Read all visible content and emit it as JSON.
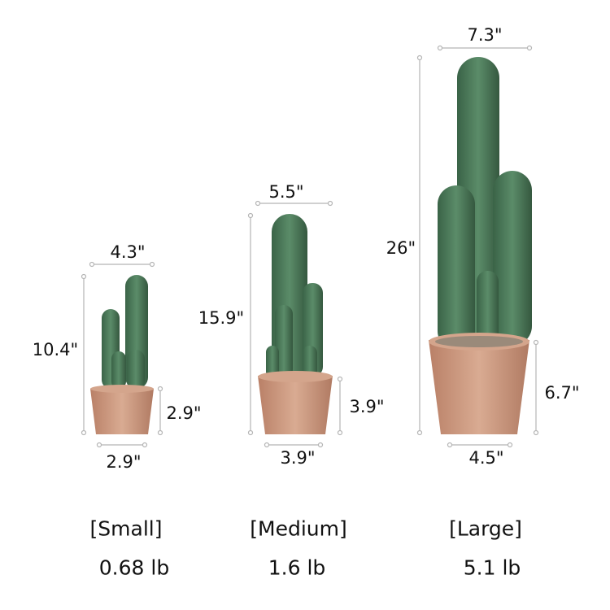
{
  "colors": {
    "cactus": "#4d7d5c",
    "cactus_dark": "#3a6347",
    "pot": "#c8947a",
    "pot_rim": "#d4a58c",
    "measure_line": "#b5b5b5"
  },
  "sizes": [
    {
      "label": "[Small]",
      "weight": "0.68 lb",
      "top_width": "4.3\"",
      "height": "10.4\"",
      "pot_height": "2.9\"",
      "bottom_width": "2.9\""
    },
    {
      "label": "[Medium]",
      "weight": "1.6 lb",
      "top_width": "5.5\"",
      "height": "15.9\"",
      "pot_height": "3.9\"",
      "bottom_width": "3.9\""
    },
    {
      "label": "[Large]",
      "weight": "5.1 lb",
      "top_width": "7.3\"",
      "height": "26\"",
      "pot_height": "6.7\"",
      "bottom_width": "4.5\""
    }
  ]
}
